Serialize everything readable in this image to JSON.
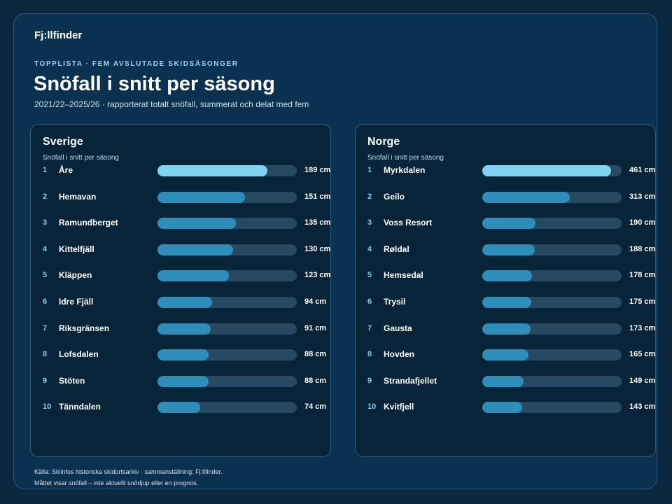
{
  "brand": "Fj:llfinder",
  "kicker": "TOPPLISTA · FEM AVSLUTADE SKIDSÄSONGER",
  "title": "Snöfall i snitt per säsong",
  "subtitle": "2021/22–2025/26 · rapporterat totalt snöfall, summerat och delat med fem",
  "footer": {
    "source": "Källa: Skiinfos historiska skidortsarkiv · sammanställning: Fj:llfinder.",
    "note": "Måttet visar snöfall – inte aktuellt snödjup eller en prognos."
  },
  "colors": {
    "top_bar": "#7fd4f2",
    "bar": "#2f8dba",
    "track": "#274a62",
    "background": "#0a3250"
  },
  "chart_data": [
    {
      "type": "bar",
      "orientation": "horizontal",
      "title": "Sverige",
      "metric_label": "Snöfall i snitt per säsong",
      "unit": "cm",
      "xlim": [
        0,
        240
      ],
      "ranks": [
        "1",
        "2",
        "3",
        "4",
        "5",
        "6",
        "7",
        "8",
        "9",
        "10"
      ],
      "categories": [
        "Åre",
        "Hemavan",
        "Ramundberget",
        "Kittelfjäll",
        "Kläppen",
        "Idre Fjäll",
        "Riksgränsen",
        "Lofsdalen",
        "Stöten",
        "Tänndalen"
      ],
      "values": [
        189,
        151,
        135,
        130,
        123,
        94,
        91,
        88,
        88,
        74
      ],
      "labels": [
        "189 cm",
        "151 cm",
        "135 cm",
        "130 cm",
        "123 cm",
        "94 cm",
        "91 cm",
        "88 cm",
        "88 cm",
        "74 cm"
      ]
    },
    {
      "type": "bar",
      "orientation": "horizontal",
      "title": "Norge",
      "metric_label": "Snöfall i snitt per säsong",
      "unit": "cm",
      "xlim": [
        0,
        500
      ],
      "ranks": [
        "1",
        "2",
        "3",
        "4",
        "5",
        "6",
        "7",
        "8",
        "9",
        "10"
      ],
      "categories": [
        "Myrkdalen",
        "Geilo",
        "Voss Resort",
        "Røldal",
        "Hemsedal",
        "Trysil",
        "Gausta",
        "Hovden",
        "Strandafjellet",
        "Kvitfjell"
      ],
      "values": [
        461,
        313,
        190,
        188,
        178,
        175,
        173,
        165,
        149,
        143
      ],
      "labels": [
        "461 cm",
        "313 cm",
        "190 cm",
        "188 cm",
        "178 cm",
        "175 cm",
        "173 cm",
        "165 cm",
        "149 cm",
        "143 cm"
      ]
    }
  ]
}
